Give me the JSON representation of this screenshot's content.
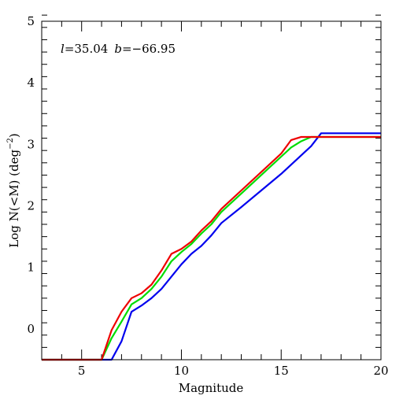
{
  "chart_data": {
    "type": "line",
    "annotation": {
      "l_symbol": "l",
      "l_value": "=35.04",
      "b_symbol": "b",
      "b_value": "=−66.95"
    },
    "xlabel": "Magnitude",
    "ylabel_prefix": "Log N(<M) (deg",
    "ylabel_sup": "−2",
    "ylabel_suffix": ")",
    "xlim": [
      3,
      20
    ],
    "ylim": [
      -0.5,
      5
    ],
    "x_major_ticks": [
      5,
      10,
      15,
      20
    ],
    "x_minor_step": 1,
    "y_major_ticks": [
      0,
      1,
      2,
      3,
      4,
      5
    ],
    "y_minor_step": 0.2,
    "x_tick_labels": [
      "5",
      "10",
      "15",
      "20"
    ],
    "y_tick_labels": [
      "0",
      "1",
      "2",
      "3",
      "4",
      "5"
    ],
    "grid": false,
    "series": [
      {
        "color": "#0000ee",
        "points": [
          [
            3.0,
            -0.5
          ],
          [
            6.5,
            -0.5
          ],
          [
            7.0,
            -0.2
          ],
          [
            7.5,
            0.28
          ],
          [
            8.0,
            0.38
          ],
          [
            8.5,
            0.5
          ],
          [
            9.0,
            0.65
          ],
          [
            9.5,
            0.85
          ],
          [
            10.0,
            1.05
          ],
          [
            10.5,
            1.22
          ],
          [
            11.0,
            1.35
          ],
          [
            11.5,
            1.52
          ],
          [
            12.0,
            1.72
          ],
          [
            13.0,
            1.98
          ],
          [
            14.0,
            2.25
          ],
          [
            15.0,
            2.52
          ],
          [
            16.0,
            2.82
          ],
          [
            16.5,
            2.97
          ],
          [
            17.0,
            3.18
          ],
          [
            20.0,
            3.18
          ]
        ]
      },
      {
        "color": "#00dd00",
        "points": [
          [
            3.0,
            -0.5
          ],
          [
            6.0,
            -0.5
          ],
          [
            6.5,
            -0.15
          ],
          [
            7.0,
            0.12
          ],
          [
            7.5,
            0.4
          ],
          [
            8.0,
            0.5
          ],
          [
            8.5,
            0.65
          ],
          [
            9.0,
            0.85
          ],
          [
            9.5,
            1.1
          ],
          [
            10.0,
            1.25
          ],
          [
            10.5,
            1.38
          ],
          [
            11.0,
            1.55
          ],
          [
            11.5,
            1.7
          ],
          [
            12.0,
            1.9
          ],
          [
            13.0,
            2.2
          ],
          [
            14.0,
            2.5
          ],
          [
            15.0,
            2.8
          ],
          [
            15.5,
            2.95
          ],
          [
            16.0,
            3.05
          ],
          [
            16.5,
            3.12
          ],
          [
            20.0,
            3.12
          ]
        ]
      },
      {
        "color": "#ee0000",
        "points": [
          [
            3.0,
            -0.5
          ],
          [
            6.0,
            -0.5
          ],
          [
            6.5,
            -0.02
          ],
          [
            7.0,
            0.28
          ],
          [
            7.5,
            0.5
          ],
          [
            8.0,
            0.58
          ],
          [
            8.5,
            0.72
          ],
          [
            9.0,
            0.95
          ],
          [
            9.5,
            1.22
          ],
          [
            10.0,
            1.3
          ],
          [
            10.5,
            1.42
          ],
          [
            11.0,
            1.6
          ],
          [
            11.5,
            1.75
          ],
          [
            12.0,
            1.95
          ],
          [
            13.0,
            2.25
          ],
          [
            14.0,
            2.55
          ],
          [
            15.0,
            2.85
          ],
          [
            15.5,
            3.07
          ],
          [
            16.0,
            3.12
          ],
          [
            20.0,
            3.12
          ]
        ]
      }
    ]
  }
}
